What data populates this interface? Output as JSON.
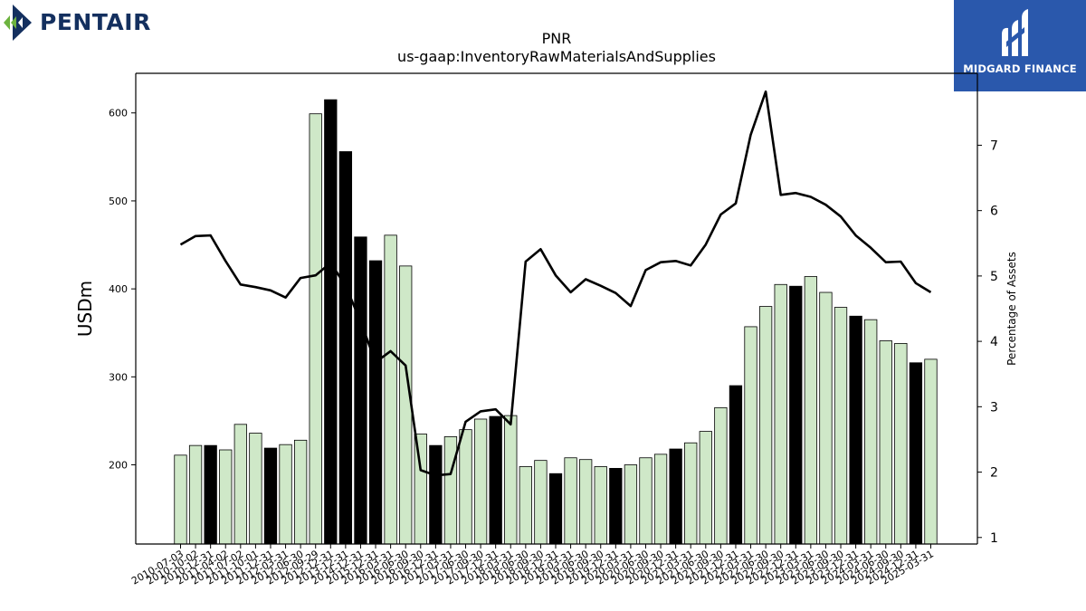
{
  "logos": {
    "left_text": "PENTAIR",
    "right_text": "MIDGARD FINANCE",
    "left_color": "#14305f",
    "left_accent": "#6db33f",
    "right_bg": "#2a58ac"
  },
  "chart_data": {
    "type": "bar",
    "title": "PNR",
    "subtitle": "us-gaap:InventoryRawMaterialsAndSupplies",
    "ylabel": "USDm",
    "y2label": "Percentage of Assets",
    "ylim": [
      110,
      645
    ],
    "y2lim": [
      0.9,
      8.1
    ],
    "yticks": [
      200,
      300,
      400,
      500,
      600
    ],
    "y2ticks": [
      1,
      2,
      3,
      4,
      5,
      6,
      7
    ],
    "colors": {
      "bar_light": "#cfe8c8",
      "bar_dark": "#000000",
      "line": "#000000"
    },
    "categories": [
      "2010-07-03",
      "2010-10-02",
      "2010-12-31",
      "2011-04-02",
      "2011-07-02",
      "2011-10-01",
      "2011-12-31",
      "2012-03-31",
      "2012-06-30",
      "2012-09-29",
      "2012-12-31",
      "2013-12-31",
      "2014-12-31",
      "2015-12-31",
      "2016-03-31",
      "2016-06-30",
      "2016-09-30",
      "2016-12-31",
      "2017-03-31",
      "2017-06-30",
      "2017-09-30",
      "2017-12-31",
      "2018-03-31",
      "2018-06-30",
      "2018-09-30",
      "2018-12-31",
      "2019-03-31",
      "2019-06-30",
      "2019-09-30",
      "2019-12-31",
      "2020-03-31",
      "2020-06-30",
      "2020-09-30",
      "2020-12-31",
      "2021-03-31",
      "2021-06-30",
      "2021-09-30",
      "2021-12-31",
      "2022-03-31",
      "2022-06-30",
      "2022-09-30",
      "2022-12-31",
      "2023-03-31",
      "2023-06-30",
      "2023-09-30",
      "2023-12-31",
      "2024-03-31",
      "2024-06-30",
      "2024-09-30",
      "2024-12-31",
      "2025-03-31"
    ],
    "series": [
      {
        "type": "bar",
        "values": [
          211,
          222,
          222,
          217,
          246,
          236,
          219,
          223,
          228,
          599,
          615,
          556,
          459,
          432,
          461,
          426,
          235,
          222,
          232,
          240,
          252,
          255,
          256,
          198,
          205,
          190,
          208,
          206,
          198,
          196,
          200,
          208,
          212,
          218,
          225,
          238,
          265,
          290,
          357,
          380,
          405,
          403,
          414,
          396,
          379,
          369,
          365,
          341,
          338,
          316,
          320
        ],
        "dark": [
          false,
          false,
          true,
          false,
          false,
          false,
          true,
          false,
          false,
          false,
          true,
          true,
          true,
          true,
          false,
          false,
          false,
          true,
          false,
          false,
          false,
          true,
          false,
          false,
          false,
          true,
          false,
          false,
          false,
          true,
          false,
          false,
          false,
          true,
          false,
          false,
          false,
          true,
          false,
          false,
          false,
          true,
          false,
          false,
          false,
          true,
          false,
          false,
          false,
          true,
          false
        ]
      },
      {
        "type": "line",
        "axis": "right",
        "values": [
          5.48,
          5.61,
          5.62,
          5.23,
          4.87,
          4.83,
          4.78,
          4.67,
          4.97,
          5.01,
          5.2,
          4.85,
          4.3,
          3.68,
          3.85,
          3.63,
          2.03,
          1.95,
          1.97,
          2.77,
          2.93,
          2.96,
          2.73,
          5.22,
          5.41,
          5.01,
          4.75,
          4.95,
          4.85,
          4.74,
          4.54,
          5.09,
          5.21,
          5.23,
          5.16,
          5.48,
          5.94,
          6.11,
          7.16,
          7.82,
          6.24,
          6.27,
          6.21,
          6.09,
          5.91,
          5.62,
          5.43,
          5.21,
          5.22,
          4.89,
          4.75
        ]
      }
    ]
  }
}
